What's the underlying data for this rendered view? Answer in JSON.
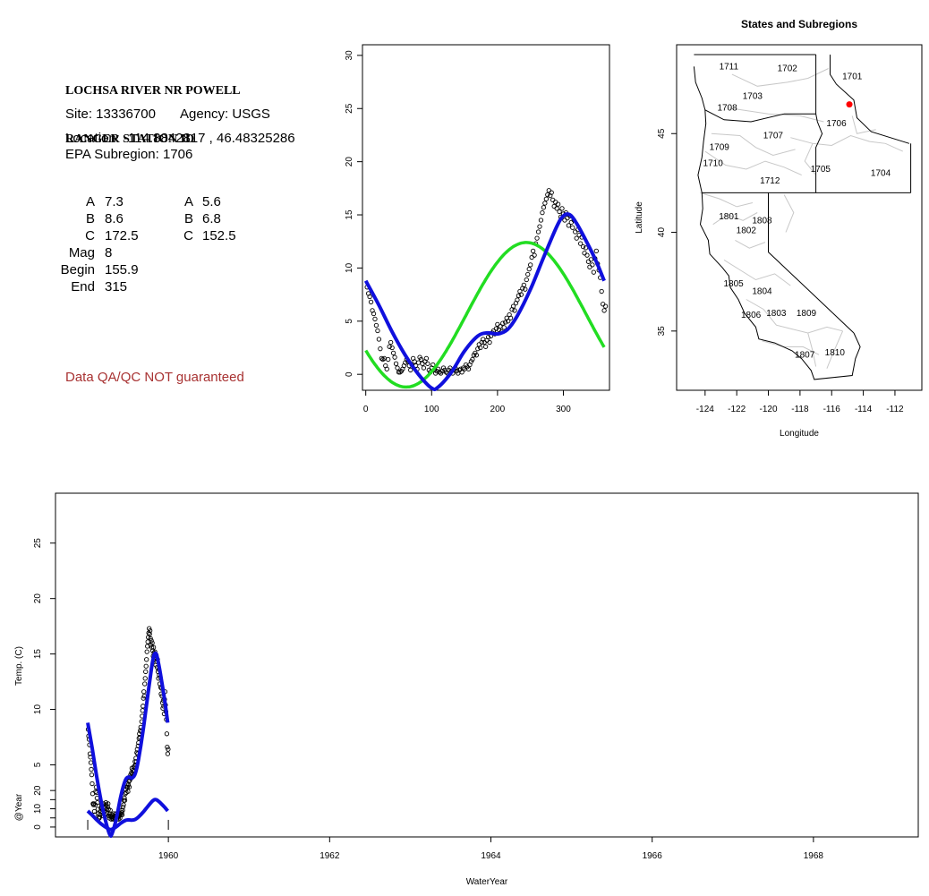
{
  "info": {
    "station_line1": "LOCHSA RIVER NR POWELL",
    "station_line2": "RANGER STATION ID",
    "site": "Site: 13336700",
    "agency": "Agency: USGS",
    "location": "Location: -114.8842817 , 46.48325286",
    "subregion": "EPA Subregion: 1706",
    "warning": "Data QA/QC NOT guaranteed",
    "params_left": [
      {
        "label": "A",
        "value": "7.3"
      },
      {
        "label": "B",
        "value": "8.6"
      },
      {
        "label": "C",
        "value": "172.5"
      },
      {
        "label": "Mag",
        "value": "8"
      },
      {
        "label": "Begin",
        "value": "155.9"
      },
      {
        "label": "End",
        "value": "315"
      }
    ],
    "params_right": [
      {
        "label": "A",
        "value": "5.6"
      },
      {
        "label": "B",
        "value": "6.8"
      },
      {
        "label": "C",
        "value": "152.5"
      }
    ]
  },
  "chart_data": [
    {
      "type": "scatter",
      "name": "seasonal",
      "xlim": [
        -5,
        370
      ],
      "ylim": [
        -1.5,
        31
      ],
      "xticks": [
        0,
        100,
        200,
        300
      ],
      "yticks": [
        0,
        5,
        10,
        15,
        20,
        25,
        30
      ],
      "observed_color": "#000000",
      "fits": [
        {
          "color": "#22dd22",
          "A": 5.6,
          "B": 6.8,
          "C": 152.5
        },
        {
          "color": "#1010dd",
          "points": [
            [
              0,
              8.8
            ],
            [
              20,
              6.5
            ],
            [
              40,
              4
            ],
            [
              60,
              1.8
            ],
            [
              80,
              0
            ],
            [
              100,
              -1.3
            ],
            [
              110,
              -1.2
            ],
            [
              130,
              0.2
            ],
            [
              150,
              2.2
            ],
            [
              170,
              3.6
            ],
            [
              185,
              3.9
            ],
            [
              200,
              3.8
            ],
            [
              215,
              4.2
            ],
            [
              230,
              5.5
            ],
            [
              250,
              8
            ],
            [
              270,
              11
            ],
            [
              290,
              13.9
            ],
            [
              300,
              14.9
            ],
            [
              310,
              15
            ],
            [
              320,
              14.2
            ],
            [
              335,
              12.5
            ],
            [
              350,
              10.6
            ],
            [
              362,
              8.8
            ]
          ]
        }
      ],
      "observed": [
        [
          2,
          8.2
        ],
        [
          4,
          7.6
        ],
        [
          6,
          7.3
        ],
        [
          8,
          6.8
        ],
        [
          10,
          6.0
        ],
        [
          12,
          5.7
        ],
        [
          14,
          5.2
        ],
        [
          16,
          4.6
        ],
        [
          18,
          4.1
        ],
        [
          20,
          3.3
        ],
        [
          22,
          2.4
        ],
        [
          24,
          1.5
        ],
        [
          26,
          1.4
        ],
        [
          28,
          1.5
        ],
        [
          30,
          0.8
        ],
        [
          32,
          0.5
        ],
        [
          34,
          1.4
        ],
        [
          36,
          2.6
        ],
        [
          38,
          3.0
        ],
        [
          40,
          2.5
        ],
        [
          42,
          2.0
        ],
        [
          44,
          1.6
        ],
        [
          46,
          1.0
        ],
        [
          48,
          0.6
        ],
        [
          50,
          0.2
        ],
        [
          52,
          0.2
        ],
        [
          54,
          0.3
        ],
        [
          56,
          0.5
        ],
        [
          58,
          0.8
        ],
        [
          60,
          1.1
        ],
        [
          62,
          1.4
        ],
        [
          64,
          1.2
        ],
        [
          66,
          0.8
        ],
        [
          68,
          0.4
        ],
        [
          70,
          0.9
        ],
        [
          72,
          1.5
        ],
        [
          74,
          1.2
        ],
        [
          76,
          0.8
        ],
        [
          78,
          0.5
        ],
        [
          80,
          1.1
        ],
        [
          82,
          1.6
        ],
        [
          84,
          1.4
        ],
        [
          86,
          1.0
        ],
        [
          88,
          0.6
        ],
        [
          90,
          1.2
        ],
        [
          92,
          1.5
        ],
        [
          94,
          1.0
        ],
        [
          96,
          0.4
        ],
        [
          98,
          0.2
        ],
        [
          100,
          0.6
        ],
        [
          102,
          0.9
        ],
        [
          104,
          0.4
        ],
        [
          106,
          0.1
        ],
        [
          108,
          0.3
        ],
        [
          110,
          0.5
        ],
        [
          112,
          0.2
        ],
        [
          114,
          0.1
        ],
        [
          116,
          0.3
        ],
        [
          118,
          0.6
        ],
        [
          120,
          0.4
        ],
        [
          122,
          0.2
        ],
        [
          124,
          0.1
        ],
        [
          126,
          0.4
        ],
        [
          128,
          0.6
        ],
        [
          130,
          0.3
        ],
        [
          132,
          0.1
        ],
        [
          134,
          0.4
        ],
        [
          136,
          0.6
        ],
        [
          138,
          0.3
        ],
        [
          140,
          0.1
        ],
        [
          142,
          0.4
        ],
        [
          144,
          0.5
        ],
        [
          146,
          0.2
        ],
        [
          148,
          0.6
        ],
        [
          150,
          0.5
        ],
        [
          152,
          0.9
        ],
        [
          154,
          0.7
        ],
        [
          156,
          0.5
        ],
        [
          158,
          0.9
        ],
        [
          160,
          1.2
        ],
        [
          162,
          1.4
        ],
        [
          164,
          1.8
        ],
        [
          166,
          2.0
        ],
        [
          168,
          1.8
        ],
        [
          170,
          2.4
        ],
        [
          172,
          2.8
        ],
        [
          174,
          2.5
        ],
        [
          176,
          3.0
        ],
        [
          178,
          3.3
        ],
        [
          180,
          3.0
        ],
        [
          182,
          2.6
        ],
        [
          184,
          3.2
        ],
        [
          186,
          3.5
        ],
        [
          188,
          3.0
        ],
        [
          190,
          3.6
        ],
        [
          192,
          3.9
        ],
        [
          194,
          4.1
        ],
        [
          196,
          3.8
        ],
        [
          198,
          4.3
        ],
        [
          200,
          4.7
        ],
        [
          202,
          4.2
        ],
        [
          204,
          4.5
        ],
        [
          206,
          4.0
        ],
        [
          208,
          4.8
        ],
        [
          210,
          4.4
        ],
        [
          212,
          4.9
        ],
        [
          214,
          5.3
        ],
        [
          216,
          5.0
        ],
        [
          218,
          5.6
        ],
        [
          220,
          5.3
        ],
        [
          222,
          6.1
        ],
        [
          224,
          6.4
        ],
        [
          226,
          6.0
        ],
        [
          228,
          6.7
        ],
        [
          230,
          7.0
        ],
        [
          232,
          7.4
        ],
        [
          234,
          7.8
        ],
        [
          236,
          7.5
        ],
        [
          238,
          8.1
        ],
        [
          240,
          8.4
        ],
        [
          242,
          8.0
        ],
        [
          244,
          8.9
        ],
        [
          246,
          9.4
        ],
        [
          248,
          9.9
        ],
        [
          250,
          10.3
        ],
        [
          252,
          11.0
        ],
        [
          254,
          11.6
        ],
        [
          256,
          11.2
        ],
        [
          258,
          12.3
        ],
        [
          260,
          12.8
        ],
        [
          262,
          13.4
        ],
        [
          264,
          13.9
        ],
        [
          266,
          14.5
        ],
        [
          268,
          15.2
        ],
        [
          270,
          15.7
        ],
        [
          272,
          16.1
        ],
        [
          274,
          16.5
        ],
        [
          276,
          16.9
        ],
        [
          278,
          17.3
        ],
        [
          280,
          16.8
        ],
        [
          282,
          17.1
        ],
        [
          284,
          16.4
        ],
        [
          286,
          15.8
        ],
        [
          288,
          16.2
        ],
        [
          290,
          15.6
        ],
        [
          292,
          16.0
        ],
        [
          294,
          15.3
        ],
        [
          296,
          14.8
        ],
        [
          298,
          15.6
        ],
        [
          300,
          15.1
        ],
        [
          302,
          14.5
        ],
        [
          304,
          15.2
        ],
        [
          306,
          14.7
        ],
        [
          308,
          14.0
        ],
        [
          310,
          14.9
        ],
        [
          312,
          14.3
        ],
        [
          314,
          13.8
        ],
        [
          316,
          14.5
        ],
        [
          318,
          13.4
        ],
        [
          320,
          12.8
        ],
        [
          322,
          13.6
        ],
        [
          324,
          13.1
        ],
        [
          326,
          12.3
        ],
        [
          328,
          12.9
        ],
        [
          330,
          12.0
        ],
        [
          332,
          11.4
        ],
        [
          334,
          11.9
        ],
        [
          336,
          11.2
        ],
        [
          338,
          10.6
        ],
        [
          340,
          10.1
        ],
        [
          342,
          10.8
        ],
        [
          344,
          10.3
        ],
        [
          346,
          9.6
        ],
        [
          348,
          10.9
        ],
        [
          350,
          11.6
        ],
        [
          352,
          10.4
        ],
        [
          354,
          9.8
        ],
        [
          356,
          9.1
        ],
        [
          358,
          7.8
        ],
        [
          360,
          6.6
        ],
        [
          362,
          6.0
        ],
        [
          364,
          6.4
        ]
      ]
    },
    {
      "type": "map",
      "title": "States and Subregions",
      "xlabel": "Longitude",
      "ylabel": "Latitude",
      "xlim": [
        -125.8,
        -110.3
      ],
      "ylim": [
        32,
        49.5
      ],
      "xticks": [
        -124,
        -122,
        -120,
        -118,
        -116,
        -114,
        -112
      ],
      "yticks": [
        35,
        40,
        45
      ],
      "region_labels": [
        {
          "label": "1701",
          "lon": -114.7,
          "lat": 47.9
        },
        {
          "label": "1702",
          "lon": -118.8,
          "lat": 48.3
        },
        {
          "label": "1703",
          "lon": -121.0,
          "lat": 46.9
        },
        {
          "label": "1704",
          "lon": -112.9,
          "lat": 43.0
        },
        {
          "label": "1705",
          "lon": -116.7,
          "lat": 43.2
        },
        {
          "label": "1706",
          "lon": -115.7,
          "lat": 45.5
        },
        {
          "label": "1707",
          "lon": -119.7,
          "lat": 44.9
        },
        {
          "label": "1708",
          "lon": -122.6,
          "lat": 46.3
        },
        {
          "label": "1709",
          "lon": -123.1,
          "lat": 44.3
        },
        {
          "label": "1710",
          "lon": -123.5,
          "lat": 43.5
        },
        {
          "label": "1711",
          "lon": -122.5,
          "lat": 48.4
        },
        {
          "label": "1712",
          "lon": -119.9,
          "lat": 42.6
        },
        {
          "label": "1801",
          "lon": -122.5,
          "lat": 40.8
        },
        {
          "label": "1802",
          "lon": -121.4,
          "lat": 40.1
        },
        {
          "label": "1803",
          "lon": -119.5,
          "lat": 35.9
        },
        {
          "label": "1804",
          "lon": -120.4,
          "lat": 37.0
        },
        {
          "label": "1805",
          "lon": -122.2,
          "lat": 37.4
        },
        {
          "label": "1806",
          "lon": -121.1,
          "lat": 35.8
        },
        {
          "label": "1807",
          "lon": -117.7,
          "lat": 33.8
        },
        {
          "label": "1808",
          "lon": -120.4,
          "lat": 40.6
        },
        {
          "label": "1809",
          "lon": -117.6,
          "lat": 35.9
        },
        {
          "label": "1810",
          "lon": -115.8,
          "lat": 33.9
        }
      ],
      "site_point": {
        "lon": -114.88,
        "lat": 46.48,
        "color": "#ff0000"
      }
    },
    {
      "type": "line",
      "name": "timeseries",
      "xlabel": "WaterYear",
      "ylabel": "Temp. (C)",
      "ylabel2": "@Year",
      "xlim": [
        1958.6,
        1969.3
      ],
      "xticks": [
        1960,
        1962,
        1964,
        1966,
        1968
      ],
      "ylim": [
        -1.5,
        29.5
      ],
      "yticks": [
        5,
        10,
        15,
        20,
        25
      ],
      "ylim2": [
        -1.5,
        24
      ],
      "yticks2": [
        0,
        5,
        10,
        15,
        20
      ],
      "yticklabels2": [
        "0",
        "10",
        "20"
      ],
      "observed": {
        "start": 1959.0,
        "end": 1960.0
      },
      "fit_color": "#1010dd"
    }
  ]
}
